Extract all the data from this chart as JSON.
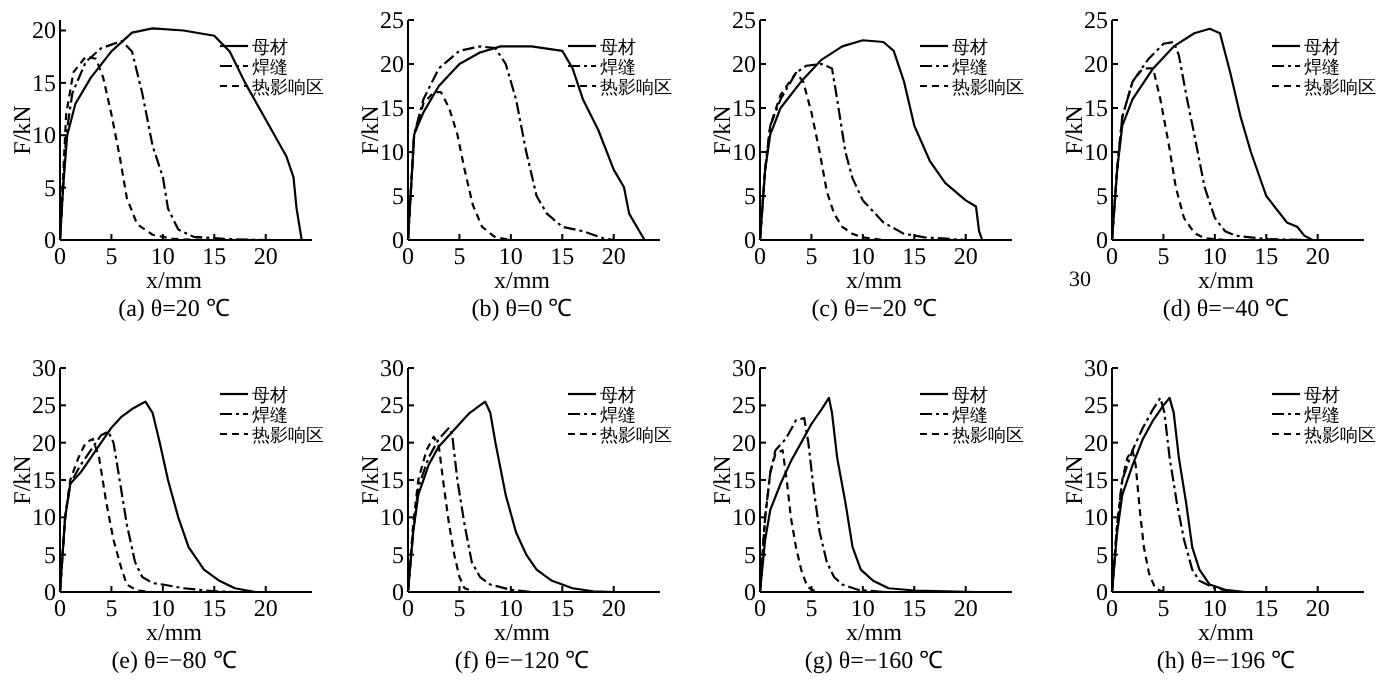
{
  "chart_data": [
    {
      "type": "line",
      "title": "(a) θ=20 ℃",
      "xlabel": "x/mm",
      "ylabel": "F/kN",
      "xlim": [
        0,
        24.5
      ],
      "xticks": [
        0,
        5,
        10,
        15,
        20
      ],
      "ylim": [
        0,
        21
      ],
      "yticks": [
        0,
        5,
        10,
        15,
        20
      ],
      "legend": "top right",
      "grid": false,
      "series": [
        {
          "name": "母材",
          "color": "#000000",
          "line_style": "solid",
          "x": [
            0,
            0.3,
            0.7,
            1.5,
            3,
            5,
            7,
            9,
            12,
            15,
            16.5,
            18,
            20,
            22,
            22.7,
            23,
            23.5
          ],
          "values": [
            0,
            5,
            10,
            13,
            15.5,
            18,
            19.8,
            20.2,
            20,
            19.5,
            18,
            15,
            11.5,
            8,
            6,
            3,
            0
          ]
        },
        {
          "name": "焊缝",
          "color": "#000000",
          "line_style": "dashdot",
          "x": [
            0,
            0.3,
            0.6,
            1.2,
            2.5,
            4,
            6,
            7,
            8,
            9,
            10,
            10.5,
            11.5,
            13,
            16,
            20
          ],
          "values": [
            0,
            5,
            10,
            14,
            17,
            18.3,
            19,
            18,
            14,
            9,
            6,
            3,
            1,
            0.3,
            0.1,
            0
          ]
        },
        {
          "name": "热影响区",
          "color": "#000000",
          "line_style": "dashed",
          "x": [
            0,
            0.3,
            0.6,
            1.3,
            2.5,
            3.5,
            4.2,
            5,
            5.8,
            6.5,
            7.5,
            9,
            11,
            14
          ],
          "values": [
            0,
            6,
            12,
            16,
            17.5,
            17.3,
            15.5,
            12,
            8,
            4,
            1.5,
            0.5,
            0.1,
            0
          ]
        }
      ]
    },
    {
      "type": "line",
      "title": "(b) θ=0 ℃",
      "xlabel": "x/mm",
      "ylabel": "F/kN",
      "xlim": [
        0,
        24.5
      ],
      "xticks": [
        0,
        5,
        10,
        15,
        20
      ],
      "ylim": [
        0,
        25
      ],
      "yticks": [
        0,
        5,
        10,
        15,
        20,
        25
      ],
      "legend": "top right",
      "grid": false,
      "series": [
        {
          "name": "母材",
          "color": "#000000",
          "line_style": "solid",
          "x": [
            0,
            0.3,
            0.6,
            1.5,
            3,
            5,
            7,
            9,
            12,
            15,
            16,
            17,
            18.5,
            20,
            21,
            21.5,
            22.5,
            23
          ],
          "values": [
            0,
            6,
            12,
            14.5,
            17.5,
            20,
            21.3,
            22,
            22,
            21.5,
            19.5,
            16,
            12.5,
            8,
            6,
            3,
            1,
            0
          ]
        },
        {
          "name": "焊缝",
          "color": "#000000",
          "line_style": "dashdot",
          "x": [
            0,
            0.3,
            0.6,
            1.5,
            3,
            5,
            7,
            8.5,
            9.5,
            10.5,
            11.5,
            12.5,
            13.5,
            15,
            17,
            18,
            19,
            20
          ],
          "values": [
            0,
            6,
            12,
            16,
            19.5,
            21.5,
            22,
            21.8,
            20,
            16,
            10,
            5,
            3,
            1.5,
            1,
            0.6,
            0.2,
            0
          ]
        },
        {
          "name": "热影响区",
          "color": "#000000",
          "line_style": "dashed",
          "x": [
            0,
            0.3,
            0.6,
            1.5,
            2.5,
            3.2,
            4,
            4.8,
            5.5,
            6.3,
            7.2,
            8.5,
            10
          ],
          "values": [
            0,
            6,
            12,
            15.5,
            16.8,
            16.8,
            15,
            12,
            8,
            4,
            1.5,
            0.3,
            0
          ]
        }
      ]
    },
    {
      "type": "line",
      "title": "(c) θ=−20 ℃",
      "xlabel": "x/mm",
      "ylabel": "F/kN",
      "xlim": [
        0,
        24.5
      ],
      "xticks": [
        0,
        5,
        10,
        15,
        20
      ],
      "ylim": [
        0,
        25
      ],
      "yticks": [
        0,
        5,
        10,
        15,
        20,
        25
      ],
      "legend": "top right",
      "grid": false,
      "series": [
        {
          "name": "母材",
          "color": "#000000",
          "line_style": "solid",
          "x": [
            0,
            0.5,
            1,
            2,
            4,
            6,
            8,
            10,
            12,
            13,
            14,
            15,
            16.5,
            18,
            20,
            21,
            21.3,
            21.6
          ],
          "values": [
            0,
            8,
            12,
            15,
            18,
            20.5,
            22,
            22.7,
            22.5,
            21.5,
            18,
            13,
            9,
            6.5,
            4.5,
            3.8,
            1,
            0
          ]
        },
        {
          "name": "焊缝",
          "color": "#000000",
          "line_style": "dashdot",
          "x": [
            0,
            0.5,
            1,
            2,
            3.5,
            4.5,
            6,
            7,
            7.5,
            8.3,
            9,
            10,
            12,
            14,
            16,
            20
          ],
          "values": [
            0,
            8,
            13,
            16,
            19,
            19.8,
            20,
            19.5,
            16,
            10,
            7,
            4.5,
            2,
            0.7,
            0.3,
            0
          ]
        },
        {
          "name": "热影响区",
          "color": "#000000",
          "line_style": "dashed",
          "x": [
            0,
            0.5,
            1,
            2,
            3.5,
            4.2,
            5,
            5.8,
            6.5,
            7.2,
            8,
            9,
            10,
            12
          ],
          "values": [
            0,
            8,
            13,
            16.5,
            19,
            18,
            14.5,
            10,
            5.5,
            3,
            1.5,
            0.7,
            0.3,
            0
          ]
        }
      ]
    },
    {
      "type": "line",
      "title": "(d) θ=−40 ℃",
      "xlabel": "x/mm",
      "ylabel": "F/kN",
      "annotations": [
        "30"
      ],
      "xlim": [
        0,
        24.5
      ],
      "xticks": [
        0,
        5,
        10,
        15,
        20
      ],
      "ylim": [
        0,
        25
      ],
      "yticks": [
        0,
        5,
        10,
        15,
        20,
        25
      ],
      "legend": "top right",
      "grid": false,
      "series": [
        {
          "name": "母材",
          "color": "#000000",
          "line_style": "solid",
          "x": [
            0,
            0.5,
            1,
            2,
            4,
            6,
            8,
            9.5,
            10.5,
            11.5,
            12.5,
            13.5,
            15,
            16,
            17,
            18,
            18.7,
            19.5
          ],
          "values": [
            0,
            8,
            13,
            16,
            19.5,
            22,
            23.5,
            24,
            23.5,
            19,
            14,
            10,
            5,
            3.5,
            2,
            1.5,
            0.5,
            0
          ]
        },
        {
          "name": "焊缝",
          "color": "#000000",
          "line_style": "dashdot",
          "x": [
            0,
            0.5,
            1,
            2,
            3.5,
            5,
            6,
            6.5,
            7.3,
            8,
            9,
            10,
            11,
            12,
            15,
            19
          ],
          "values": [
            0,
            8,
            14,
            18,
            20.5,
            22.3,
            22.5,
            21,
            16,
            12,
            6,
            2.5,
            1,
            0.5,
            0.1,
            0
          ]
        },
        {
          "name": "热影响区",
          "color": "#000000",
          "line_style": "dashed",
          "x": [
            0,
            0.5,
            1,
            2,
            3,
            4,
            4.7,
            5.5,
            6.2,
            7,
            8,
            9,
            11
          ],
          "values": [
            0,
            8,
            14,
            18,
            19.5,
            19.5,
            16,
            11,
            6,
            2.5,
            0.8,
            0.2,
            0
          ]
        }
      ]
    },
    {
      "type": "line",
      "title": "(e) θ=−80 ℃",
      "xlabel": "x/mm",
      "ylabel": "F/kN",
      "xlim": [
        0,
        24.5
      ],
      "xticks": [
        0,
        5,
        10,
        15,
        20
      ],
      "ylim": [
        0,
        30
      ],
      "yticks": [
        0,
        5,
        10,
        15,
        20,
        25,
        30
      ],
      "legend": "top right",
      "grid": false,
      "series": [
        {
          "name": "母材",
          "color": "#000000",
          "line_style": "solid",
          "x": [
            0,
            0.5,
            1,
            2,
            3,
            4,
            5,
            6,
            7,
            8.3,
            9,
            9.7,
            10.5,
            11.5,
            12.5,
            14,
            15.5,
            17,
            19
          ],
          "values": [
            0,
            10,
            14.5,
            16,
            18,
            20,
            22,
            23.5,
            24.5,
            25.5,
            24,
            20,
            15,
            10,
            6,
            3,
            1.5,
            0.5,
            0
          ]
        },
        {
          "name": "焊缝",
          "color": "#000000",
          "line_style": "dashdot",
          "x": [
            0,
            0.5,
            1,
            2,
            3,
            4,
            4.7,
            5.2,
            5.8,
            6.5,
            7.3,
            8,
            9,
            10,
            12,
            15,
            17
          ],
          "values": [
            0,
            10,
            14.5,
            17,
            19,
            21,
            21.5,
            20,
            15,
            9,
            4,
            2,
            1.2,
            1,
            0.5,
            0.1,
            0
          ]
        },
        {
          "name": "热影响区",
          "color": "#000000",
          "line_style": "dashed",
          "x": [
            0,
            0.5,
            1,
            1.8,
            2.5,
            3.2,
            3.8,
            4.5,
            5.2,
            6,
            6.5,
            7.5,
            9
          ],
          "values": [
            0,
            10,
            15,
            18,
            20,
            20.5,
            18,
            12,
            7,
            3,
            1,
            0.2,
            0
          ]
        }
      ]
    },
    {
      "type": "line",
      "title": "(f) θ=−120 ℃",
      "xlabel": "x/mm",
      "ylabel": "F/kN",
      "xlim": [
        0,
        24.5
      ],
      "xticks": [
        0,
        5,
        10,
        15,
        20
      ],
      "ylim": [
        0,
        30
      ],
      "yticks": [
        0,
        5,
        10,
        15,
        20,
        25,
        30
      ],
      "legend": "top right",
      "grid": false,
      "series": [
        {
          "name": "母材",
          "color": "#000000",
          "line_style": "solid",
          "x": [
            0,
            0.5,
            1,
            2,
            3,
            4,
            5,
            6,
            7.5,
            8,
            8.5,
            9.5,
            10.5,
            11.5,
            12.5,
            14,
            16,
            18,
            20
          ],
          "values": [
            0,
            8,
            13,
            17,
            19.5,
            21,
            22.5,
            24,
            25.5,
            24,
            20,
            13,
            8,
            5,
            3,
            1.5,
            0.5,
            0.1,
            0
          ]
        },
        {
          "name": "焊缝",
          "color": "#000000",
          "line_style": "dashdot",
          "x": [
            0,
            0.5,
            1,
            2,
            3,
            4,
            4.3,
            4.8,
            5.5,
            6.2,
            7,
            8,
            10,
            12
          ],
          "values": [
            0,
            8,
            14,
            18,
            20.5,
            22,
            21,
            15,
            9,
            4,
            2,
            1,
            0.3,
            0
          ]
        },
        {
          "name": "热影响区",
          "color": "#000000",
          "line_style": "dashed",
          "x": [
            0,
            0.5,
            1,
            1.8,
            2.5,
            3,
            3.5,
            4,
            4.5,
            5,
            5.5,
            6.5
          ],
          "values": [
            0,
            9,
            15,
            19,
            20.8,
            19.5,
            14,
            9,
            5,
            2,
            0.5,
            0
          ]
        }
      ]
    },
    {
      "type": "line",
      "title": "(g) θ=−160 ℃",
      "xlabel": "x/mm",
      "ylabel": "F/kN",
      "xlim": [
        0,
        24.5
      ],
      "xticks": [
        0,
        5,
        10,
        15,
        20
      ],
      "ylim": [
        0,
        30
      ],
      "yticks": [
        0,
        5,
        10,
        15,
        20,
        25,
        30
      ],
      "legend": "top right",
      "grid": false,
      "series": [
        {
          "name": "母材",
          "color": "#000000",
          "line_style": "solid",
          "x": [
            0,
            0.5,
            1,
            2,
            3,
            4,
            5,
            6,
            6.7,
            7,
            7.5,
            8.3,
            9,
            9.8,
            11,
            12.5,
            15,
            21
          ],
          "values": [
            0,
            7,
            11,
            14.5,
            17.5,
            20,
            22.5,
            24.5,
            26,
            24,
            18,
            12,
            6,
            3,
            1.5,
            0.5,
            0.2,
            0
          ]
        },
        {
          "name": "焊缝",
          "color": "#000000",
          "line_style": "dashdot",
          "x": [
            0,
            0.5,
            1,
            1.5,
            2.5,
            3.5,
            4.3,
            4.7,
            5.2,
            5.8,
            6.5,
            7.2,
            8,
            9.5,
            12
          ],
          "values": [
            0,
            10,
            16,
            19,
            20.5,
            23,
            23.3,
            20,
            14,
            8,
            4,
            2,
            1,
            0.3,
            0
          ]
        },
        {
          "name": "热影响区",
          "color": "#000000",
          "line_style": "dashed",
          "x": [
            0,
            0.5,
            1,
            1.5,
            2.2,
            2.6,
            3,
            3.5,
            4,
            4.6,
            5.5
          ],
          "values": [
            0,
            10,
            16,
            18.5,
            19,
            15,
            10,
            6,
            3,
            0.7,
            0
          ]
        }
      ]
    },
    {
      "type": "line",
      "title": "(h) θ=−196 ℃",
      "xlabel": "x/mm",
      "ylabel": "F/kN",
      "xlim": [
        0,
        24.5
      ],
      "xticks": [
        0,
        5,
        10,
        15,
        20
      ],
      "ylim": [
        0,
        30
      ],
      "yticks": [
        0,
        5,
        10,
        15,
        20,
        25,
        30
      ],
      "legend": "top right",
      "grid": false,
      "series": [
        {
          "name": "母材",
          "color": "#000000",
          "line_style": "solid",
          "x": [
            0,
            0.5,
            1,
            2,
            3,
            4,
            5,
            5.6,
            6,
            6.5,
            7.2,
            7.8,
            8.5,
            9.5,
            11,
            13
          ],
          "values": [
            0,
            8,
            13,
            17,
            20.5,
            23,
            25,
            26,
            24,
            18,
            12,
            6,
            3,
            1,
            0.3,
            0
          ]
        },
        {
          "name": "焊缝",
          "color": "#000000",
          "line_style": "dashdot",
          "x": [
            0,
            0.5,
            1,
            2,
            3,
            4,
            4.7,
            5.1,
            5.6,
            6.3,
            7,
            7.8,
            8.5,
            10,
            12
          ],
          "values": [
            0,
            9,
            15,
            19,
            22,
            24.5,
            26,
            24,
            18,
            12,
            7,
            3,
            1.5,
            0.5,
            0
          ]
        },
        {
          "name": "热影响区",
          "color": "#000000",
          "line_style": "dashed",
          "x": [
            0,
            0.5,
            1,
            1.5,
            2,
            2.3,
            2.7,
            3.1,
            3.6,
            4.2,
            5
          ],
          "values": [
            0,
            9,
            15,
            18,
            19,
            17,
            11,
            6,
            2.5,
            0.5,
            0
          ]
        }
      ]
    }
  ]
}
